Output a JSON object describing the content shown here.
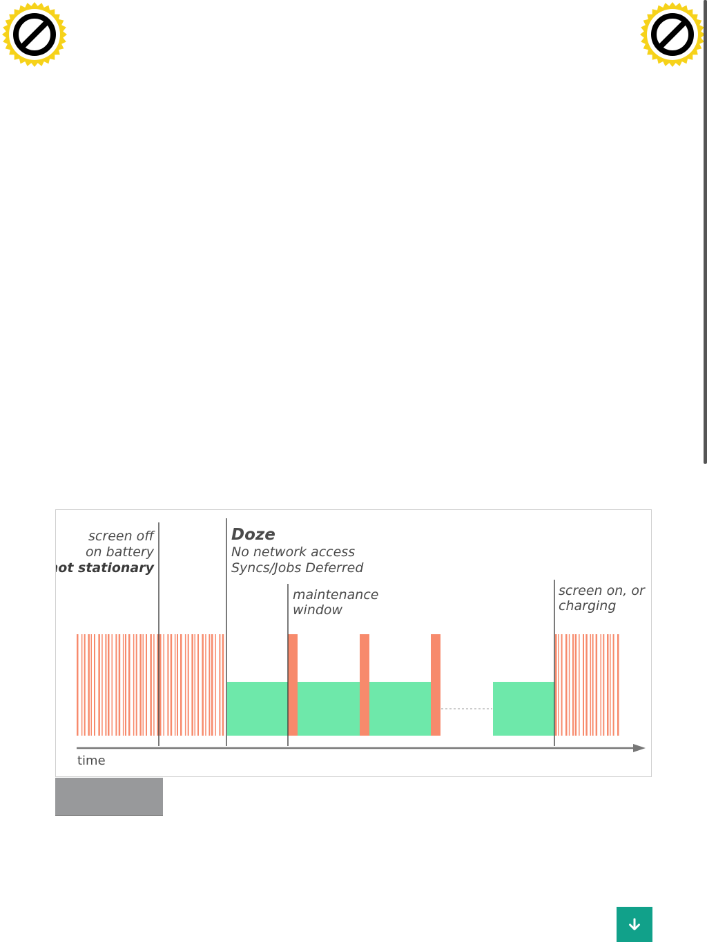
{
  "badges": {
    "left_icon": "no-entry-badge-icon",
    "right_icon": "no-entry-badge-icon",
    "ring_color": "#f6d21a",
    "disc_color": "#ffffff",
    "symbol_color": "#000000"
  },
  "diagram": {
    "labels": {
      "screen_off_1": "screen off",
      "screen_off_2": "on battery",
      "screen_off_3": "not stationary",
      "doze_title": "Doze",
      "doze_1": "No network access",
      "doze_2": "Syncs/Jobs Deferred",
      "maint_1": "maintenance",
      "maint_2": "window",
      "screen_on_1": "screen on, or",
      "screen_on_2": "charging",
      "time_axis": "time"
    },
    "colors": {
      "activity": "#f78a6c",
      "doze": "#6ee8aa",
      "doze_text": "#5dc89a",
      "maintenance": "#f78a6c",
      "line": "#333333",
      "axis": "#777777"
    }
  },
  "scroll_button": {
    "icon": "arrow-down-icon",
    "color": "#11a18a"
  }
}
